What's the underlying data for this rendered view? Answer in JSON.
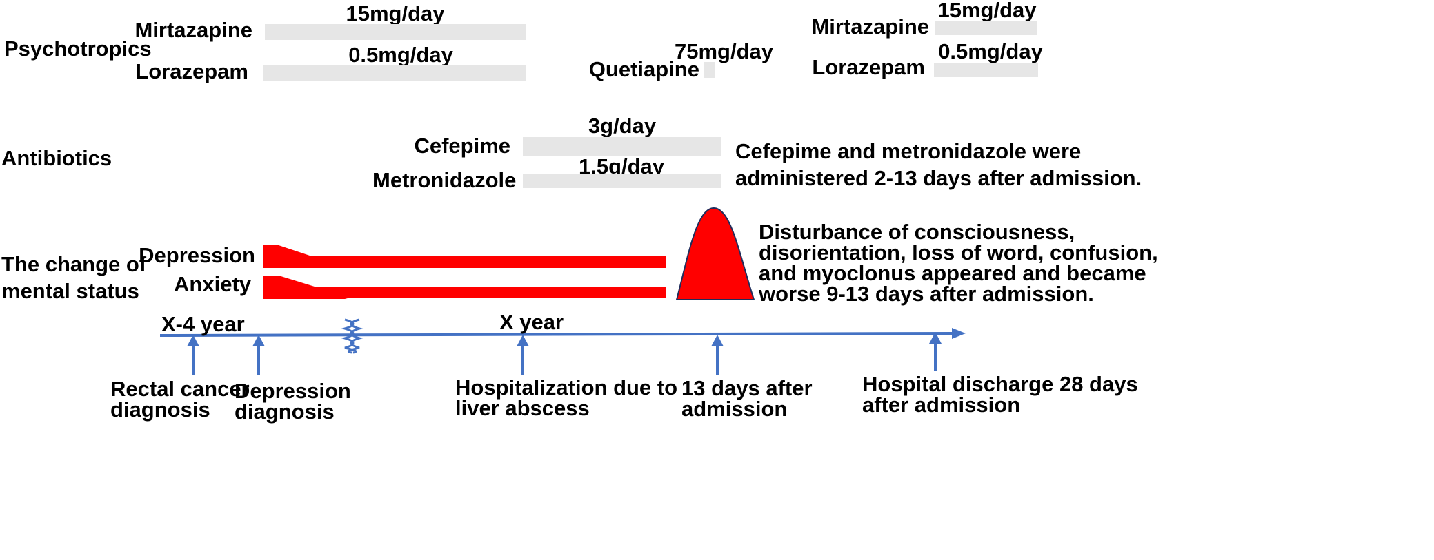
{
  "categories": {
    "psychotropics": "Psychotropics",
    "antibiotics": "Antibiotics",
    "mental_status": [
      "The change of",
      "mental status"
    ]
  },
  "drugs": {
    "mirtazapine_1": {
      "name": "Mirtazapine",
      "dose": "15mg/day"
    },
    "lorazepam_1": {
      "name": "Lorazepam",
      "dose": "0.5mg/day"
    },
    "quetiapine": {
      "name": "Quetiapine",
      "dose": "75mg/day"
    },
    "mirtazapine_2": {
      "name": "Mirtazapine",
      "dose": "15mg/day"
    },
    "lorazepam_2": {
      "name": "Lorazepam",
      "dose": "0.5mg/day"
    },
    "cefepime": {
      "name": "Cefepime",
      "dose": "3g/day"
    },
    "metronidazole": {
      "name": "Metronidazole",
      "dose": "1.5g/day"
    }
  },
  "antibiotic_note": [
    "Cefepime and metronidazole were",
    "administered 2-13 days after admission."
  ],
  "symptoms": {
    "depression": "Depression",
    "anxiety": "Anxiety"
  },
  "symptom_note": [
    "Disturbance of consciousness,",
    "disorientation, loss of word, confusion,",
    "and myoclonus appeared and became",
    "worse 9-13 days after admission."
  ],
  "timeline": {
    "start_label": "X-4 year",
    "mid_label": "X year",
    "events": [
      {
        "lines": [
          "Rectal cancer",
          "diagnosis"
        ]
      },
      {
        "lines": [
          "Depression",
          "diagnosis"
        ]
      },
      {
        "lines": [
          "Hospitalization due to",
          "liver abscess"
        ]
      },
      {
        "lines": [
          "13 days after",
          "admission"
        ]
      },
      {
        "lines": [
          "Hospital discharge 28 days",
          "after admission"
        ]
      }
    ]
  },
  "colors": {
    "symptom": "#ff0000",
    "timeline": "#4472c4",
    "drug_bar": "#e6e6e6",
    "peak_outline": "#1f2d5c"
  }
}
